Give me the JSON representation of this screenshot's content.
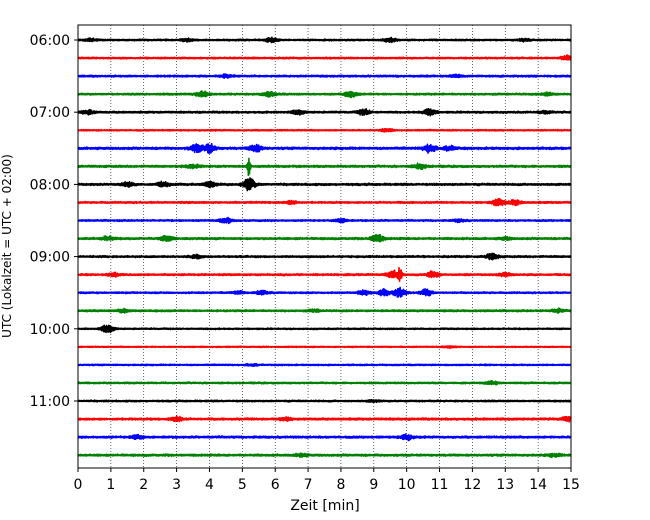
{
  "chart_data": {
    "type": "line",
    "subtype": "helicorder",
    "title": "",
    "xlabel": "Zeit  [min]",
    "ylabel": "UTC (Lokalzeit = UTC + 02:00)",
    "xlim": [
      0,
      15
    ],
    "x_ticks": [
      "0",
      "1",
      "2",
      "3",
      "4",
      "5",
      "6",
      "7",
      "8",
      "9",
      "10",
      "11",
      "12",
      "13",
      "14",
      "15"
    ],
    "y_tick_labels": [
      "06:00",
      "07:00",
      "08:00",
      "09:00",
      "10:00",
      "11:00"
    ],
    "grid": "vertical-dotted",
    "line_interval_minutes": 15,
    "start_time": "06:00",
    "color_cycle": [
      "#000000",
      "#ff0000",
      "#0000ff",
      "#008000"
    ],
    "traces": [
      {
        "time": "06:00",
        "color": "#000000",
        "amplitude": 0.7,
        "events": [
          [
            0.4,
            0.5
          ],
          [
            3.3,
            0.5
          ],
          [
            5.9,
            0.8
          ],
          [
            9.5,
            0.7
          ],
          [
            13.6,
            0.4
          ]
        ]
      },
      {
        "time": "06:15",
        "color": "#ff0000",
        "amplitude": 0.7,
        "events": [
          [
            14.9,
            0.8
          ]
        ]
      },
      {
        "time": "06:30",
        "color": "#0000ff",
        "amplitude": 0.8,
        "events": [
          [
            4.5,
            0.5
          ],
          [
            11.5,
            0.4
          ]
        ]
      },
      {
        "time": "06:45",
        "color": "#008000",
        "amplitude": 0.8,
        "events": [
          [
            3.8,
            0.9
          ],
          [
            5.8,
            0.8
          ],
          [
            8.3,
            0.9
          ],
          [
            14.3,
            0.5
          ]
        ]
      },
      {
        "time": "07:00",
        "color": "#000000",
        "amplitude": 0.8,
        "events": [
          [
            0.3,
            0.7
          ],
          [
            6.7,
            0.7
          ],
          [
            8.7,
            0.9
          ],
          [
            10.7,
            1.1
          ],
          [
            14.2,
            0.4
          ]
        ]
      },
      {
        "time": "07:15",
        "color": "#ff0000",
        "amplitude": 0.6,
        "events": [
          [
            9.4,
            0.5
          ]
        ]
      },
      {
        "time": "07:30",
        "color": "#0000ff",
        "amplitude": 1.0,
        "events": [
          [
            3.6,
            1.2
          ],
          [
            4.0,
            1.4
          ],
          [
            5.4,
            1.2
          ],
          [
            10.7,
            1.3
          ],
          [
            11.3,
            0.7
          ]
        ]
      },
      {
        "time": "07:45",
        "color": "#008000",
        "amplitude": 0.9,
        "events": [
          [
            3.5,
            0.7
          ],
          [
            5.2,
            3.5
          ],
          [
            10.4,
            0.8
          ]
        ]
      },
      {
        "time": "08:00",
        "color": "#000000",
        "amplitude": 0.9,
        "events": [
          [
            1.5,
            0.7
          ],
          [
            2.6,
            0.8
          ],
          [
            4.0,
            0.9
          ],
          [
            5.2,
            2.0
          ]
        ]
      },
      {
        "time": "08:15",
        "color": "#ff0000",
        "amplitude": 0.8,
        "events": [
          [
            6.5,
            0.5
          ],
          [
            12.8,
            1.2
          ],
          [
            13.3,
            0.8
          ]
        ]
      },
      {
        "time": "08:30",
        "color": "#0000ff",
        "amplitude": 0.7,
        "events": [
          [
            4.5,
            0.9
          ],
          [
            8.0,
            0.6
          ],
          [
            11.6,
            0.4
          ]
        ]
      },
      {
        "time": "08:45",
        "color": "#008000",
        "amplitude": 0.9,
        "events": [
          [
            0.9,
            0.6
          ],
          [
            2.7,
            0.8
          ],
          [
            9.1,
            1.3
          ],
          [
            13.0,
            0.4
          ]
        ]
      },
      {
        "time": "09:00",
        "color": "#000000",
        "amplitude": 0.8,
        "events": [
          [
            3.6,
            0.5
          ],
          [
            12.6,
            1.0
          ]
        ]
      },
      {
        "time": "09:15",
        "color": "#ff0000",
        "amplitude": 0.8,
        "events": [
          [
            1.1,
            0.5
          ],
          [
            9.6,
            1.4
          ],
          [
            9.8,
            2.4
          ],
          [
            10.8,
            1.0
          ],
          [
            13.0,
            0.6
          ]
        ]
      },
      {
        "time": "09:30",
        "color": "#0000ff",
        "amplitude": 0.7,
        "events": [
          [
            4.9,
            0.5
          ],
          [
            5.6,
            0.6
          ],
          [
            8.7,
            0.8
          ],
          [
            9.3,
            1.0
          ],
          [
            9.8,
            1.6
          ],
          [
            10.6,
            1.1
          ]
        ]
      },
      {
        "time": "09:45",
        "color": "#008000",
        "amplitude": 0.8,
        "events": [
          [
            1.4,
            0.6
          ],
          [
            7.2,
            0.4
          ],
          [
            14.6,
            0.6
          ]
        ]
      },
      {
        "time": "10:00",
        "color": "#000000",
        "amplitude": 0.6,
        "events": [
          [
            0.9,
            1.3
          ]
        ]
      },
      {
        "time": "10:15",
        "color": "#ff0000",
        "amplitude": 0.5,
        "events": [
          [
            11.3,
            0.3
          ]
        ]
      },
      {
        "time": "10:30",
        "color": "#0000ff",
        "amplitude": 0.6,
        "events": [
          [
            5.3,
            0.3
          ]
        ]
      },
      {
        "time": "10:45",
        "color": "#008000",
        "amplitude": 0.7,
        "events": [
          [
            12.6,
            0.5
          ]
        ]
      },
      {
        "time": "11:00",
        "color": "#000000",
        "amplitude": 0.7,
        "events": [
          [
            9.0,
            0.3
          ]
        ]
      },
      {
        "time": "11:15",
        "color": "#ff0000",
        "amplitude": 0.9,
        "events": [
          [
            3.0,
            0.8
          ],
          [
            6.3,
            0.5
          ],
          [
            14.9,
            0.6
          ]
        ]
      },
      {
        "time": "11:30",
        "color": "#0000ff",
        "amplitude": 0.9,
        "events": [
          [
            1.8,
            0.6
          ],
          [
            10.0,
            0.9
          ]
        ]
      },
      {
        "time": "11:45",
        "color": "#008000",
        "amplitude": 0.9,
        "events": [
          [
            6.8,
            0.5
          ],
          [
            14.5,
            0.5
          ]
        ]
      }
    ]
  }
}
